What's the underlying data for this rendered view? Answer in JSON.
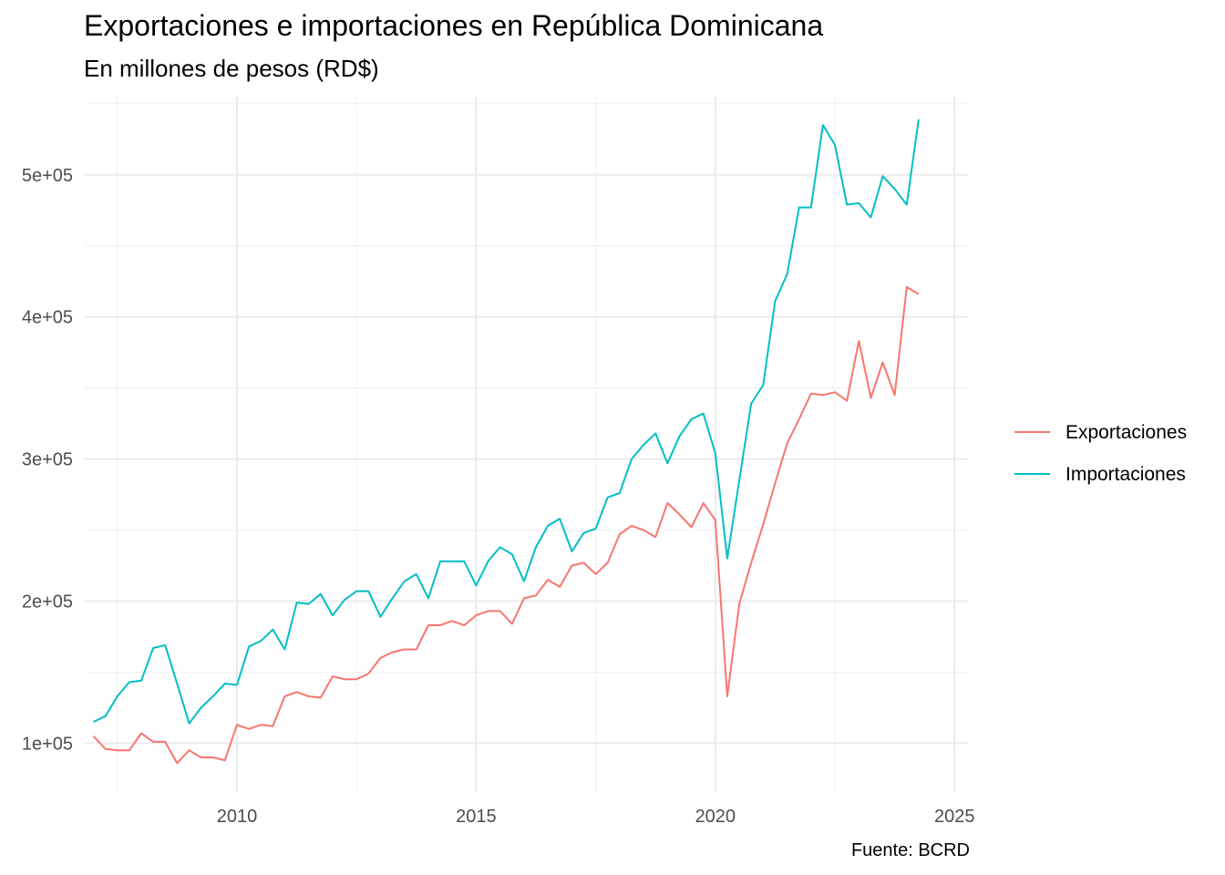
{
  "chart_data": {
    "type": "line",
    "title": "Exportaciones e importaciones en República Dominicana",
    "subtitle": "En millones de pesos (RD$)",
    "caption": "Fuente: BCRD",
    "xlabel": "",
    "ylabel": "",
    "xlim": [
      2006.8,
      2025.3
    ],
    "ylim": [
      65000,
      555000
    ],
    "x_ticks": [
      2010,
      2015,
      2020,
      2025
    ],
    "x_tick_labels": [
      "2010",
      "2015",
      "2020",
      "2025"
    ],
    "y_ticks": [
      100000,
      200000,
      300000,
      400000,
      500000
    ],
    "y_tick_labels": [
      "1e+05",
      "2e+05",
      "3e+05",
      "4e+05",
      "5e+05"
    ],
    "grid": true,
    "legend_position": "right",
    "x": [
      2007.0,
      2007.25,
      2007.5,
      2007.75,
      2008.0,
      2008.25,
      2008.5,
      2008.75,
      2009.0,
      2009.25,
      2009.5,
      2009.75,
      2010.0,
      2010.25,
      2010.5,
      2010.75,
      2011.0,
      2011.25,
      2011.5,
      2011.75,
      2012.0,
      2012.25,
      2012.5,
      2012.75,
      2013.0,
      2013.25,
      2013.5,
      2013.75,
      2014.0,
      2014.25,
      2014.5,
      2014.75,
      2015.0,
      2015.25,
      2015.5,
      2015.75,
      2016.0,
      2016.25,
      2016.5,
      2016.75,
      2017.0,
      2017.25,
      2017.5,
      2017.75,
      2018.0,
      2018.25,
      2018.5,
      2018.75,
      2019.0,
      2019.25,
      2019.5,
      2019.75,
      2020.0,
      2020.25,
      2020.5,
      2020.75,
      2021.0,
      2021.25,
      2021.5,
      2021.75,
      2022.0,
      2022.25,
      2022.5,
      2022.75,
      2023.0,
      2023.25,
      2023.5,
      2023.75,
      2024.0,
      2024.25
    ],
    "series": [
      {
        "name": "Exportaciones",
        "color": "#F8766D",
        "values": [
          105000,
          96000,
          95000,
          95000,
          107000,
          101000,
          101000,
          86000,
          95000,
          90000,
          90000,
          88000,
          113000,
          110000,
          113000,
          112000,
          133000,
          136000,
          133000,
          132000,
          147000,
          145000,
          145000,
          149000,
          160000,
          164000,
          166000,
          166000,
          183000,
          183000,
          186000,
          183000,
          190000,
          193000,
          193000,
          184000,
          202000,
          204000,
          215000,
          210000,
          225000,
          227000,
          219000,
          227000,
          247000,
          253000,
          250000,
          245000,
          269000,
          261000,
          252000,
          269000,
          257000,
          133000,
          198000,
          227000,
          254000,
          283000,
          311000,
          328000,
          346000,
          345000,
          347000,
          341000,
          383000,
          343000,
          368000,
          345000,
          421000,
          416000
        ]
      },
      {
        "name": "Importaciones",
        "color": "#00BFC4",
        "values": [
          115000,
          119000,
          133000,
          143000,
          144000,
          167000,
          169000,
          142000,
          114000,
          125000,
          133000,
          142000,
          141000,
          168000,
          172000,
          180000,
          166000,
          199000,
          198000,
          205000,
          190000,
          201000,
          207000,
          207000,
          189000,
          202000,
          214000,
          219000,
          202000,
          228000,
          228000,
          228000,
          211000,
          228000,
          238000,
          233000,
          214000,
          238000,
          253000,
          258000,
          235000,
          248000,
          251000,
          273000,
          276000,
          300000,
          310000,
          318000,
          297000,
          316000,
          328000,
          332000,
          304000,
          230000,
          285000,
          339000,
          352000,
          411000,
          430000,
          477000,
          477000,
          535000,
          521000,
          479000,
          480000,
          470000,
          499000,
          490000,
          479000,
          539000
        ]
      }
    ]
  }
}
